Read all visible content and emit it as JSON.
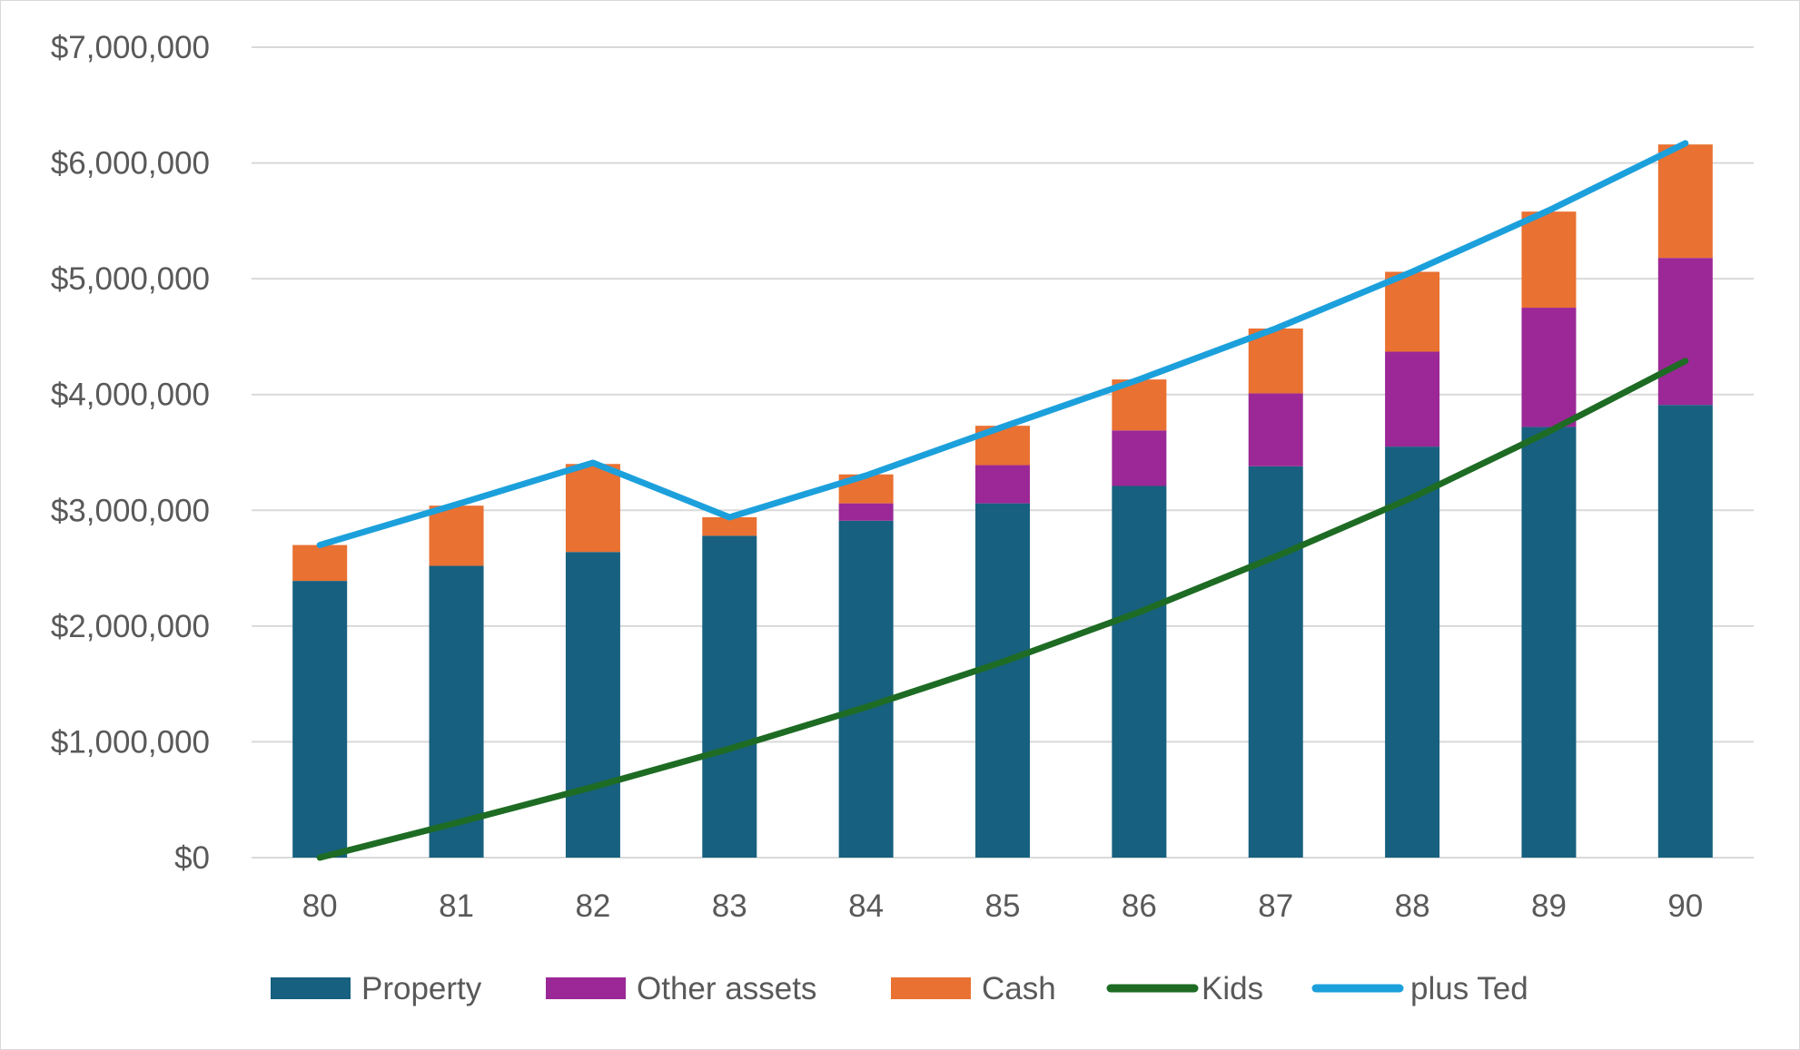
{
  "chart_data": {
    "type": "bar",
    "title": "",
    "xlabel": "",
    "ylabel": "",
    "stacked": true,
    "categories": [
      "80",
      "81",
      "82",
      "83",
      "84",
      "85",
      "86",
      "87",
      "88",
      "89",
      "90"
    ],
    "ylim": [
      0,
      7000000
    ],
    "y_ticks": [
      0,
      1000000,
      2000000,
      3000000,
      4000000,
      5000000,
      6000000,
      7000000
    ],
    "y_tick_labels": [
      "$0",
      "$1,000,000",
      "$2,000,000",
      "$3,000,000",
      "$4,000,000",
      "$5,000,000",
      "$6,000,000",
      "$7,000,000"
    ],
    "grid": true,
    "legend_position": "bottom",
    "series": [
      {
        "name": "Property",
        "kind": "bar",
        "color": "#17607f",
        "values": [
          2390000,
          2520000,
          2640000,
          2780000,
          2910000,
          3060000,
          3210000,
          3380000,
          3550000,
          3720000,
          3910000
        ]
      },
      {
        "name": "Other assets",
        "kind": "bar",
        "color": "#9b2896",
        "values": [
          0,
          0,
          0,
          0,
          150000,
          330000,
          480000,
          630000,
          820000,
          1030000,
          1270000
        ]
      },
      {
        "name": "Cash",
        "kind": "bar",
        "color": "#e97132",
        "values": [
          310000,
          520000,
          760000,
          160000,
          250000,
          340000,
          440000,
          560000,
          690000,
          830000,
          980000
        ]
      },
      {
        "name": "Kids",
        "kind": "line",
        "color": "#1e6b24",
        "values": [
          0,
          300000,
          610000,
          940000,
          1300000,
          1690000,
          2120000,
          2600000,
          3110000,
          3680000,
          4290000
        ]
      },
      {
        "name": "plus Ted",
        "kind": "line",
        "color": "#1ca0dc",
        "values": [
          2700000,
          3050000,
          3410000,
          2940000,
          3300000,
          3720000,
          4130000,
          4570000,
          5060000,
          5590000,
          6170000
        ]
      }
    ]
  }
}
